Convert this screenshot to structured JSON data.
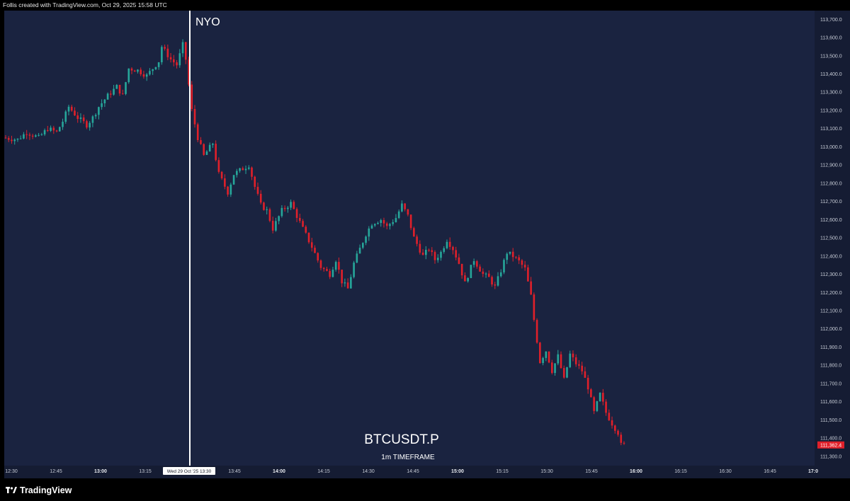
{
  "header": {
    "attribution": "Follis created with TradingView.com, Oct 29, 2025 15:58 UTC"
  },
  "footer": {
    "brand": "TradingView"
  },
  "colors": {
    "background": "#1a2340",
    "up": "#26a69a",
    "down": "#e0202a",
    "session_line": "#ffffff",
    "price_tag": "#e0202a"
  },
  "chart_data": {
    "type": "candlestick",
    "symbol": "BTCUSDT.P",
    "timeframe": "1m TIMEFRAME",
    "session_marker": {
      "label": "NYO",
      "time": "13:30"
    },
    "crosshair_label": "Wed 29 Oct '25   13:30",
    "last_price_label": "111,362.4",
    "last_price": 111362.4,
    "y_ticks": [
      "113,700.0",
      "113,600.0",
      "113,500.0",
      "113,400.0",
      "113,300.0",
      "113,200.0",
      "113,100.0",
      "113,000.0",
      "112,900.0",
      "112,800.0",
      "112,700.0",
      "112,600.0",
      "112,500.0",
      "112,400.0",
      "112,300.0",
      "112,200.0",
      "112,100.0",
      "112,000.0",
      "111,900.0",
      "111,800.0",
      "111,700.0",
      "111,600.0",
      "111,500.0",
      "111,400.0",
      "111,300.0"
    ],
    "y_range": [
      111280,
      113740
    ],
    "x_ticks": [
      {
        "label": "12:30",
        "bold": false
      },
      {
        "label": "12:45",
        "bold": false
      },
      {
        "label": "13:00",
        "bold": true
      },
      {
        "label": "13:15",
        "bold": false
      },
      {
        "label": "13:45",
        "bold": false
      },
      {
        "label": "14:00",
        "bold": true
      },
      {
        "label": "14:15",
        "bold": false
      },
      {
        "label": "14:30",
        "bold": false
      },
      {
        "label": "14:45",
        "bold": false
      },
      {
        "label": "15:00",
        "bold": true
      },
      {
        "label": "15:15",
        "bold": false
      },
      {
        "label": "15:30",
        "bold": false
      },
      {
        "label": "15:45",
        "bold": false
      },
      {
        "label": "16:00",
        "bold": true
      },
      {
        "label": "16:15",
        "bold": false
      },
      {
        "label": "16:30",
        "bold": false
      },
      {
        "label": "16:45",
        "bold": false
      },
      {
        "label": "17:0",
        "bold": true
      }
    ],
    "price_path": [
      [
        0,
        113050
      ],
      [
        5,
        113040
      ],
      [
        8,
        113080
      ],
      [
        12,
        113050
      ],
      [
        15,
        113100
      ],
      [
        18,
        113080
      ],
      [
        20,
        113140
      ],
      [
        22,
        113220
      ],
      [
        25,
        113160
      ],
      [
        28,
        113120
      ],
      [
        30,
        113160
      ],
      [
        32,
        113220
      ],
      [
        35,
        113280
      ],
      [
        38,
        113330
      ],
      [
        40,
        113280
      ],
      [
        42,
        113430
      ],
      [
        45,
        113420
      ],
      [
        48,
        113390
      ],
      [
        52,
        113470
      ],
      [
        53,
        113550
      ],
      [
        56,
        113480
      ],
      [
        58,
        113450
      ],
      [
        60,
        113560
      ],
      [
        61,
        113480
      ],
      [
        63,
        113200
      ],
      [
        65,
        113050
      ],
      [
        67,
        112950
      ],
      [
        70,
        113020
      ],
      [
        72,
        112850
      ],
      [
        75,
        112750
      ],
      [
        77,
        112850
      ],
      [
        80,
        112880
      ],
      [
        82,
        112900
      ],
      [
        84,
        112780
      ],
      [
        86,
        112680
      ],
      [
        88,
        112650
      ],
      [
        90,
        112550
      ],
      [
        93,
        112650
      ],
      [
        96,
        112690
      ],
      [
        98,
        112620
      ],
      [
        100,
        112550
      ],
      [
        103,
        112450
      ],
      [
        106,
        112340
      ],
      [
        109,
        112300
      ],
      [
        111,
        112380
      ],
      [
        113,
        112260
      ],
      [
        115,
        112220
      ],
      [
        117,
        112360
      ],
      [
        119,
        112440
      ],
      [
        121,
        112520
      ],
      [
        123,
        112580
      ],
      [
        126,
        112600
      ],
      [
        128,
        112560
      ],
      [
        131,
        112610
      ],
      [
        133,
        112680
      ],
      [
        135,
        112620
      ],
      [
        137,
        112500
      ],
      [
        140,
        112400
      ],
      [
        142,
        112440
      ],
      [
        144,
        112380
      ],
      [
        146,
        112420
      ],
      [
        148,
        112490
      ],
      [
        150,
        112440
      ],
      [
        152,
        112360
      ],
      [
        154,
        112250
      ],
      [
        157,
        112380
      ],
      [
        160,
        112300
      ],
      [
        162,
        112280
      ],
      [
        164,
        112230
      ],
      [
        166,
        112320
      ],
      [
        168,
        112420
      ],
      [
        170,
        112400
      ],
      [
        172,
        112370
      ],
      [
        174,
        112330
      ],
      [
        176,
        112180
      ],
      [
        177,
        112050
      ],
      [
        179,
        111820
      ],
      [
        181,
        111880
      ],
      [
        183,
        111770
      ],
      [
        185,
        111850
      ],
      [
        187,
        111720
      ],
      [
        189,
        111860
      ],
      [
        191,
        111810
      ],
      [
        193,
        111770
      ],
      [
        195,
        111680
      ],
      [
        197,
        111540
      ],
      [
        199,
        111640
      ],
      [
        201,
        111540
      ],
      [
        203,
        111480
      ],
      [
        205,
        111430
      ],
      [
        206,
        111362
      ]
    ]
  }
}
